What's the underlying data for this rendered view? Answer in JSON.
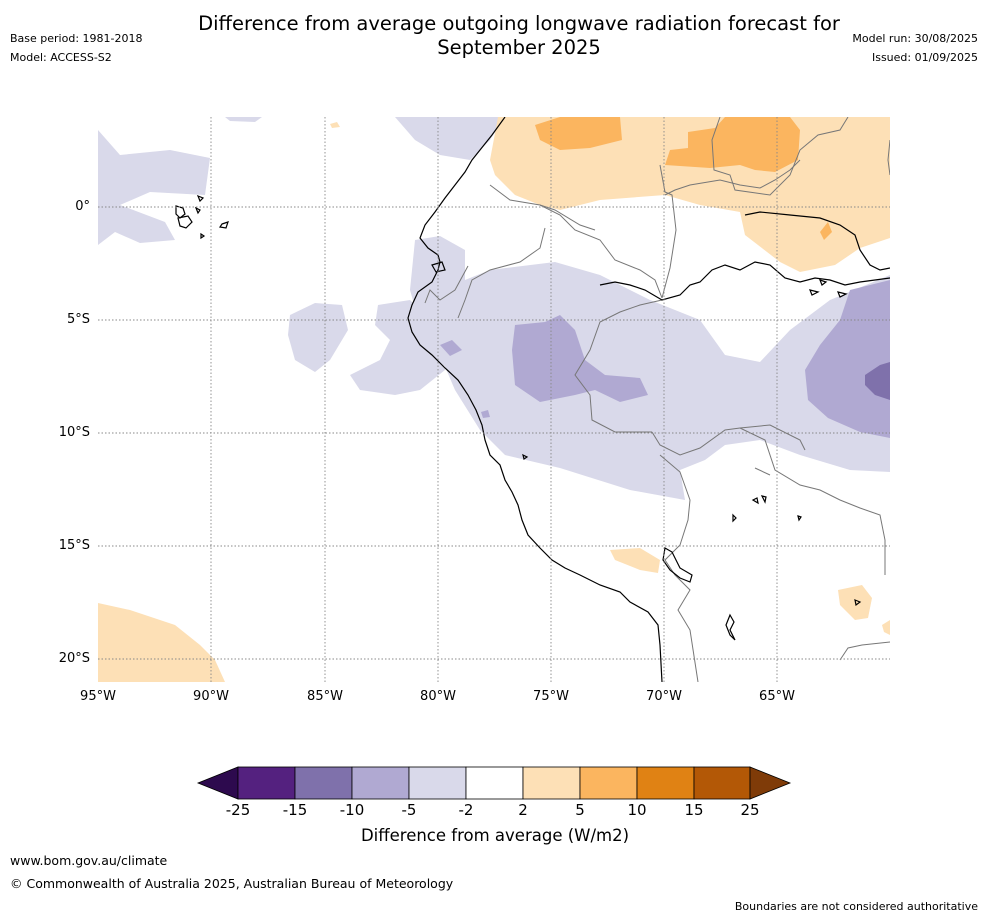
{
  "title_line1": "Difference from average outgoing longwave radiation forecast for",
  "title_line2": "September 2025",
  "base_period": "Base period: 1981-2018",
  "model": "Model: ACCESS-S2",
  "model_run": "Model run: 30/08/2025",
  "issued": "Issued: 01/09/2025",
  "lat_labels": [
    "0°",
    "5°S",
    "10°S",
    "15°S",
    "20°S"
  ],
  "lon_labels": [
    "95°W",
    "90°W",
    "85°W",
    "80°W",
    "75°W",
    "70°W",
    "65°W"
  ],
  "colorbar": {
    "title": "Difference from average (W/m2)",
    "ticks": [
      "-25",
      "-15",
      "-10",
      "-5",
      "-2",
      "2",
      "5",
      "10",
      "15",
      "25"
    ],
    "colors": [
      "#2d0a4e",
      "#54217f",
      "#7f71ab",
      "#b0a9d2",
      "#d9d9ea",
      "#ffffff",
      "#fde0b6",
      "#fbb55f",
      "#e08214",
      "#b35806",
      "#7f3b08"
    ]
  },
  "footer_url": "www.bom.gov.au/climate",
  "footer_copyright": "© Commonwealth of Australia 2025, Australian Bureau of Meteorology",
  "footer_note": "Boundaries are not considered authoritative"
}
